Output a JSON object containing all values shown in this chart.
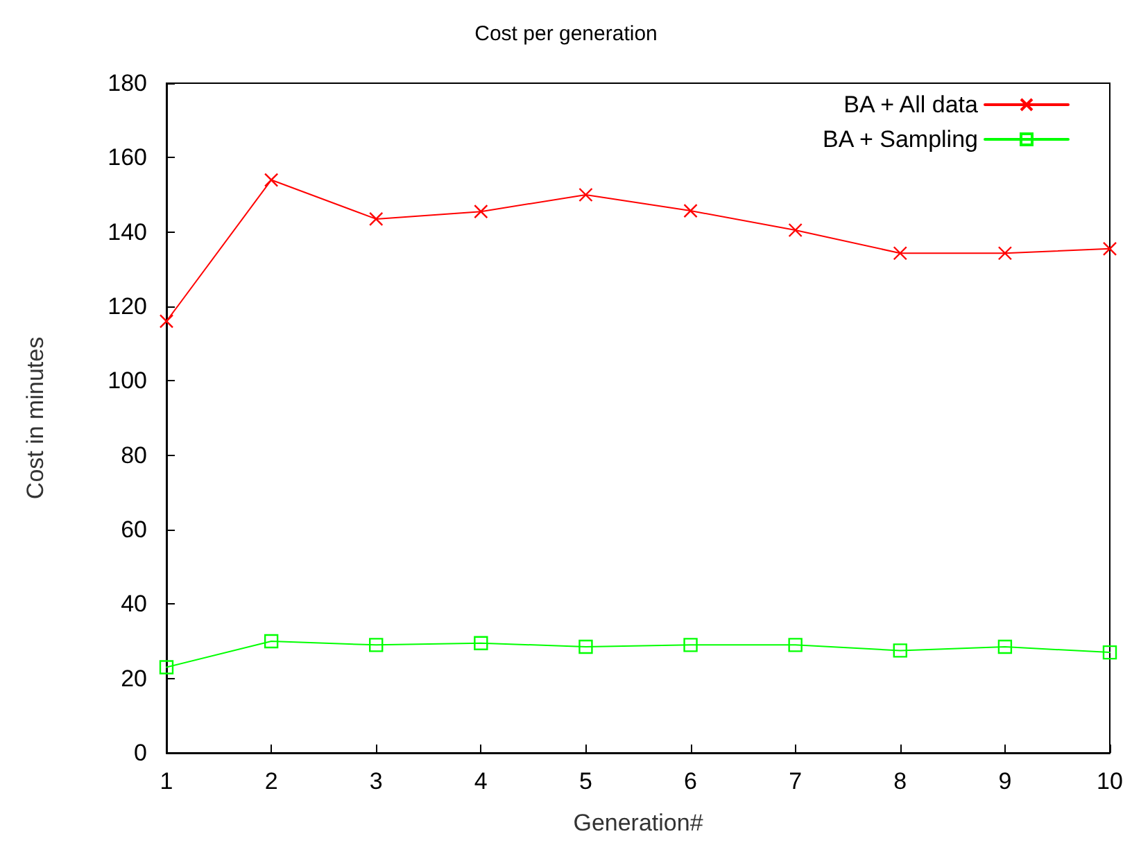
{
  "chart_data": {
    "type": "line",
    "title": "Cost per generation",
    "xlabel": "Generation#",
    "ylabel": "Cost in minutes",
    "x": [
      1,
      2,
      3,
      4,
      5,
      6,
      7,
      8,
      9,
      10
    ],
    "series": [
      {
        "name": "BA + All data",
        "color": "#ff0000",
        "marker": "cross",
        "values": [
          116,
          154,
          143.5,
          145.5,
          150,
          145.7,
          140.5,
          134.3,
          134.3,
          135.5
        ]
      },
      {
        "name": "BA + Sampling",
        "color": "#00ff00",
        "marker": "square",
        "values": [
          23,
          30,
          29,
          29.5,
          28.5,
          29,
          29,
          27.5,
          28.5,
          27
        ]
      }
    ],
    "xlim": [
      1,
      10
    ],
    "xticks": [
      1,
      2,
      3,
      4,
      5,
      6,
      7,
      8,
      9,
      10
    ],
    "ylim": [
      0,
      180
    ],
    "yticks": [
      0,
      20,
      40,
      60,
      80,
      100,
      120,
      140,
      160,
      180
    ],
    "grid": false,
    "legend": "top right",
    "line_style": "solid"
  }
}
